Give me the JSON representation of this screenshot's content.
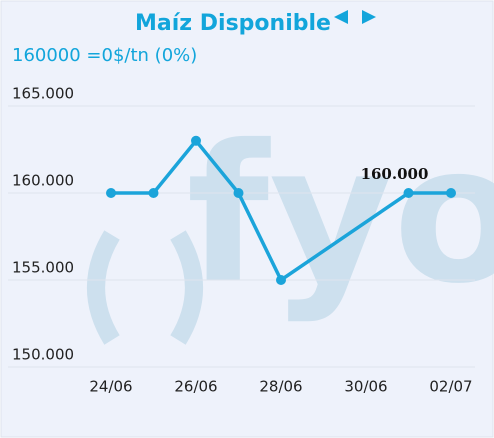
{
  "chart_data": {
    "type": "line",
    "title": "Maíz Disponible",
    "subtitle": "160000 =0$/tn (0%)",
    "watermark": "fyo",
    "x": [
      "24/06",
      "25/06",
      "26/06",
      "27/06",
      "28/06",
      "01/07",
      "02/07"
    ],
    "series": [
      {
        "color": "#1ba4da",
        "values": [
          160000,
          160000,
          163000,
          160000,
          155000,
          160000,
          160000
        ],
        "value_labels": [
          null,
          null,
          null,
          null,
          null,
          "160.000",
          null
        ]
      }
    ],
    "xticks": [
      "24/06",
      "26/06",
      "28/06",
      "30/06",
      "02/07"
    ],
    "ylim": [
      150000,
      165000
    ],
    "yticks": [
      {
        "value": 150000,
        "label": "150.000"
      },
      {
        "value": 155000,
        "label": "155.000"
      },
      {
        "value": 160000,
        "label": "160.000"
      },
      {
        "value": 165000,
        "label": "165.000"
      }
    ],
    "grid": true
  }
}
